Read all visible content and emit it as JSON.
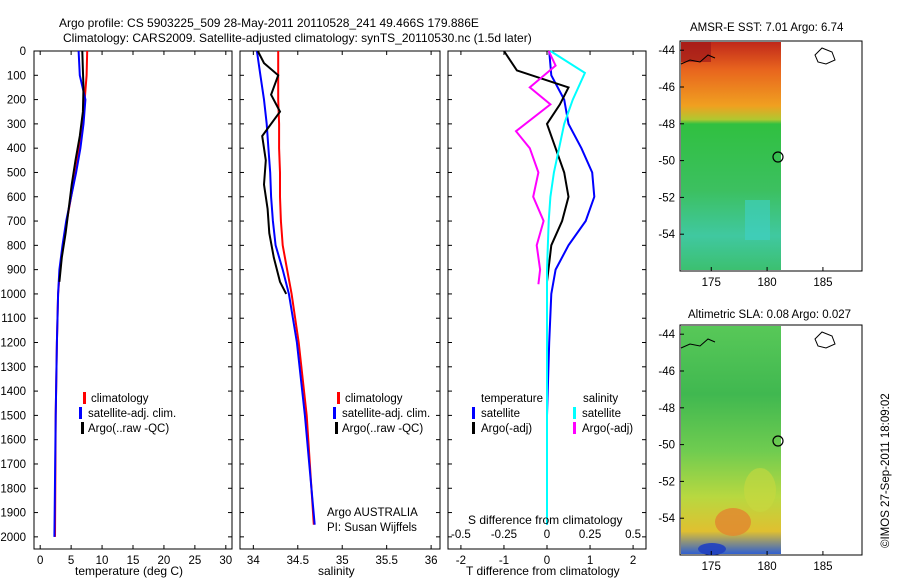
{
  "header": {
    "line1": "Argo profile: CS 5903225_509 28-May-2011 20110528_241 49.466S 179.886E",
    "line2": "Climatology: CARS2009. Satellite-adjusted climatology: synTS_20110530.nc (1.5d later)"
  },
  "colors": {
    "climatology": "#ff0000",
    "satellite": "#0000ff",
    "argo": "#000000",
    "salinity_satellite": "#00ffff",
    "salinity_argo": "#ff00ff"
  },
  "depth_axis": {
    "ticks": [
      0,
      100,
      200,
      300,
      400,
      500,
      600,
      700,
      800,
      900,
      1000,
      1100,
      1200,
      1300,
      1400,
      1500,
      1600,
      1700,
      1800,
      1900,
      2000
    ],
    "range": [
      0,
      2050
    ]
  },
  "chart_data": [
    {
      "type": "line",
      "xlabel": "temperature (deg C)",
      "ylabel": "",
      "xlim": [
        -1,
        31
      ],
      "xticks": [
        0,
        5,
        10,
        15,
        20,
        25,
        30
      ],
      "ylim": [
        0,
        2050
      ],
      "legend": [
        "climatology",
        "satellite-adj. clim.",
        "Argo(..raw -QC)"
      ],
      "series": [
        {
          "name": "climatology",
          "x": [
            7.6,
            7.5,
            7.2,
            6.8,
            6.3,
            5.7,
            5.0,
            4.3,
            3.7,
            3.2,
            2.9,
            2.7,
            2.5,
            2.4
          ],
          "y": [
            0,
            100,
            200,
            300,
            400,
            500,
            600,
            700,
            800,
            900,
            1000,
            1200,
            1500,
            2000
          ]
        },
        {
          "name": "satellite-adj. clim.",
          "x": [
            6.2,
            6.4,
            7.3,
            7.0,
            6.5,
            5.8,
            5.0,
            4.2,
            3.6,
            3.1,
            2.9,
            2.7,
            2.5,
            2.3
          ],
          "y": [
            0,
            100,
            200,
            300,
            400,
            500,
            600,
            700,
            800,
            900,
            1000,
            1200,
            1500,
            2000
          ]
        },
        {
          "name": "Argo(..raw -QC)",
          "x": [
            6.8,
            6.9,
            7.0,
            6.9,
            6.4,
            5.7,
            5.1,
            4.6,
            4.1,
            3.5,
            3.1
          ],
          "y": [
            0,
            80,
            150,
            250,
            350,
            450,
            550,
            650,
            750,
            850,
            950
          ]
        }
      ]
    },
    {
      "type": "line",
      "xlabel": "salinity",
      "ylabel": "",
      "xlim": [
        33.85,
        36.1
      ],
      "xticks": [
        34,
        34.5,
        35,
        35.5,
        36
      ],
      "ylim": [
        0,
        2050
      ],
      "legend": [
        "climatology",
        "satellite-adj. clim.",
        "Argo(..raw -QC)"
      ],
      "annotations": [
        "Argo AUSTRALIA",
        "PI: Susan Wijffels"
      ],
      "series": [
        {
          "name": "climatology",
          "x": [
            34.28,
            34.28,
            34.28,
            34.29,
            34.29,
            34.3,
            34.3,
            34.31,
            34.33,
            34.38,
            34.43,
            34.51,
            34.6,
            34.68
          ],
          "y": [
            0,
            100,
            200,
            300,
            400,
            500,
            600,
            700,
            800,
            900,
            1000,
            1200,
            1500,
            1950
          ]
        },
        {
          "name": "satellite-adj. clim.",
          "x": [
            34.04,
            34.08,
            34.12,
            34.15,
            34.17,
            34.19,
            34.2,
            34.22,
            34.25,
            34.33,
            34.4,
            34.49,
            34.58,
            34.69
          ],
          "y": [
            0,
            100,
            200,
            300,
            400,
            500,
            600,
            700,
            800,
            900,
            1000,
            1200,
            1500,
            1950
          ]
        },
        {
          "name": "Argo(..raw -QC)",
          "x": [
            34.05,
            34.12,
            34.28,
            34.2,
            34.3,
            34.1,
            34.14,
            34.12,
            34.16,
            34.18,
            34.23,
            34.3,
            34.37
          ],
          "y": [
            0,
            50,
            100,
            180,
            250,
            350,
            450,
            550,
            650,
            750,
            850,
            950,
            1000
          ]
        }
      ]
    },
    {
      "type": "line",
      "xlabel": "T difference from climatology",
      "x2label": "S difference from climatology",
      "xlim": [
        -2.3,
        2.3
      ],
      "xticks": [
        -2,
        -1,
        0,
        1,
        2
      ],
      "x2ticks": [
        -0.5,
        -0.25,
        0,
        0.25,
        0.5
      ],
      "ylim": [
        0,
        2050
      ],
      "legend_left_title": "temperature",
      "legend_right_title": "salinity",
      "legend": [
        "satellite",
        "Argo(-adj)",
        "satellite",
        "Argo(-adj)"
      ],
      "series": [
        {
          "name": "satellite",
          "x": [
            0.05,
            0.1,
            0.4,
            0.5,
            0.8,
            1.05,
            1.1,
            0.9,
            0.5,
            0.2,
            0.1,
            0.05,
            0.0,
            0.0
          ],
          "y": [
            0,
            100,
            200,
            300,
            400,
            500,
            600,
            700,
            800,
            900,
            1000,
            1200,
            1500,
            1950
          ]
        },
        {
          "name": "Argo(-adj)",
          "x": [
            -1.0,
            -0.7,
            0.5,
            0.3,
            0.0,
            0.2,
            0.4,
            0.5,
            0.35,
            0.1,
            0.0
          ],
          "y": [
            0,
            80,
            150,
            220,
            300,
            400,
            500,
            600,
            700,
            800,
            950
          ]
        },
        {
          "name": "satellite",
          "x": [
            0.02,
            0.22,
            0.15,
            0.1,
            0.07,
            0.04,
            0.02,
            0.01,
            0.0,
            0.0,
            0.0
          ],
          "y": [
            0,
            90,
            200,
            300,
            400,
            500,
            600,
            700,
            900,
            1200,
            1950
          ]
        },
        {
          "name": "Argo(-adj)",
          "x": [
            0.01,
            0.05,
            -0.1,
            0.02,
            -0.18,
            -0.1,
            -0.05,
            -0.08,
            -0.02,
            -0.06,
            -0.04,
            -0.05
          ],
          "y": [
            0,
            60,
            150,
            220,
            330,
            400,
            500,
            600,
            700,
            800,
            900,
            960
          ]
        }
      ]
    }
  ],
  "maps": [
    {
      "title": "AMSR-E SST: 7.01  Argo: 6.74",
      "yticks": [
        "-44",
        "-46",
        "-48",
        "-50",
        "-52",
        "-54"
      ],
      "xticks": [
        "175",
        "180",
        "185"
      ]
    },
    {
      "title": "Altimetric SLA: 0.08  Argo: 0.027",
      "yticks": [
        "-44",
        "-46",
        "-48",
        "-50",
        "-52",
        "-54"
      ],
      "xticks": [
        "175",
        "180",
        "185"
      ]
    }
  ],
  "footer": {
    "stamp": "©IMOS 27-Sep-2011 18:09:02"
  }
}
